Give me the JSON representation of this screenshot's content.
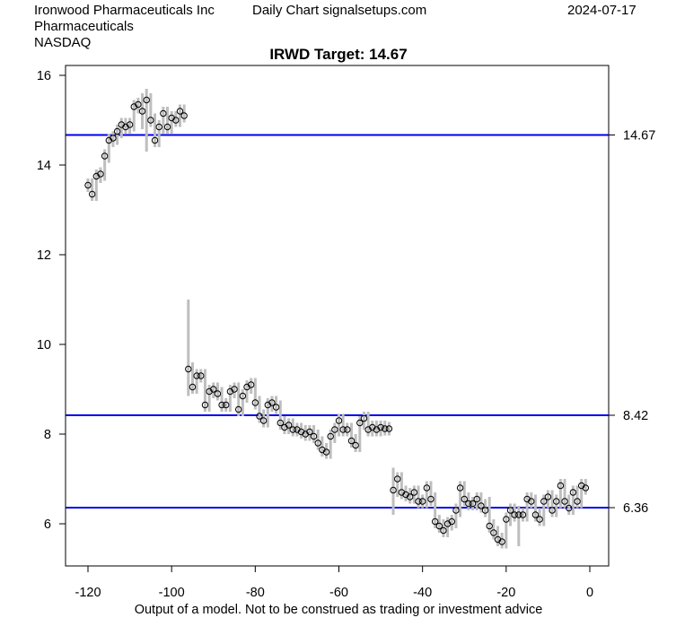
{
  "header": {
    "company": "Ironwood Pharmaceuticals Inc",
    "sector": "Pharmaceuticals",
    "exchange": "NASDAQ",
    "source": "Daily Chart signalsetups.com",
    "date": "2024-07-17"
  },
  "chart_data": {
    "type": "line",
    "title": "IRWD Target: 14.67",
    "xlabel": "Output of a model. Not to be construed as trading or investment advice",
    "ylabel": "",
    "xlim": [
      -125,
      4
    ],
    "ylim": [
      5.0,
      16.2
    ],
    "xticks": [
      -120,
      -100,
      -80,
      -60,
      -40,
      -20,
      0
    ],
    "yticks": [
      6,
      8,
      10,
      12,
      14,
      16
    ],
    "grid": false,
    "hlines": [
      {
        "value": 14.67,
        "label": "14.67",
        "color": "#0000ee"
      },
      {
        "value": 8.42,
        "label": "8.42",
        "color": "#0000ee"
      },
      {
        "value": 6.36,
        "label": "6.36",
        "color": "#0000ee"
      }
    ],
    "bar_color": "#bebebe",
    "typical_half_range": 0.25,
    "range_overrides": [
      {
        "x": -96,
        "high": 11.0,
        "low": 8.85
      },
      {
        "x": -106,
        "high": 15.7,
        "low": 14.3
      },
      {
        "x": -107,
        "high": 15.6,
        "low": 14.8
      },
      {
        "x": -47,
        "high": 7.25,
        "low": 6.2
      },
      {
        "x": -24,
        "high": 6.6,
        "low": 5.8
      },
      {
        "x": -17,
        "high": 6.4,
        "low": 5.5
      }
    ],
    "segments": [
      {
        "start_x": -120,
        "close": [
          13.55,
          13.35,
          13.75,
          13.8,
          14.2,
          14.55,
          14.6,
          14.75,
          14.9,
          14.85,
          14.9,
          15.3,
          15.35,
          15.2,
          15.45,
          15.0,
          14.55,
          14.85,
          15.15,
          14.85,
          15.05,
          15.0,
          15.2,
          15.1
        ]
      },
      {
        "start_x": -96,
        "close": [
          9.45,
          9.05,
          9.3,
          9.3,
          8.65,
          8.95,
          9.0,
          8.9,
          8.65,
          8.65,
          8.95,
          9.0,
          8.55,
          8.85,
          9.05,
          9.1,
          8.7,
          8.4,
          8.3,
          8.65,
          8.7,
          8.6,
          8.25,
          8.15,
          8.2,
          8.1,
          8.1,
          8.05,
          8.0,
          8.05,
          7.95,
          7.8,
          7.65,
          7.6,
          7.95,
          8.1,
          8.3,
          8.1,
          8.1,
          7.85,
          7.75,
          8.25,
          8.35,
          8.1,
          8.15,
          8.1,
          8.15,
          8.12,
          8.12
        ]
      },
      {
        "start_x": -47,
        "close": [
          6.75,
          7.0,
          6.7,
          6.65,
          6.6,
          6.7,
          6.5,
          6.5,
          6.8,
          6.55,
          6.05,
          5.95,
          5.85,
          6.0,
          6.05,
          6.3,
          6.8,
          6.55,
          6.45,
          6.45,
          6.55,
          6.4,
          6.3,
          5.95,
          5.8,
          5.65,
          5.6,
          6.1,
          6.3,
          6.2,
          6.2,
          6.2,
          6.55,
          6.5,
          6.2,
          6.1,
          6.5,
          6.6,
          6.3,
          6.5,
          6.85,
          6.5,
          6.35,
          6.7,
          6.5,
          6.85,
          6.8
        ]
      }
    ]
  }
}
